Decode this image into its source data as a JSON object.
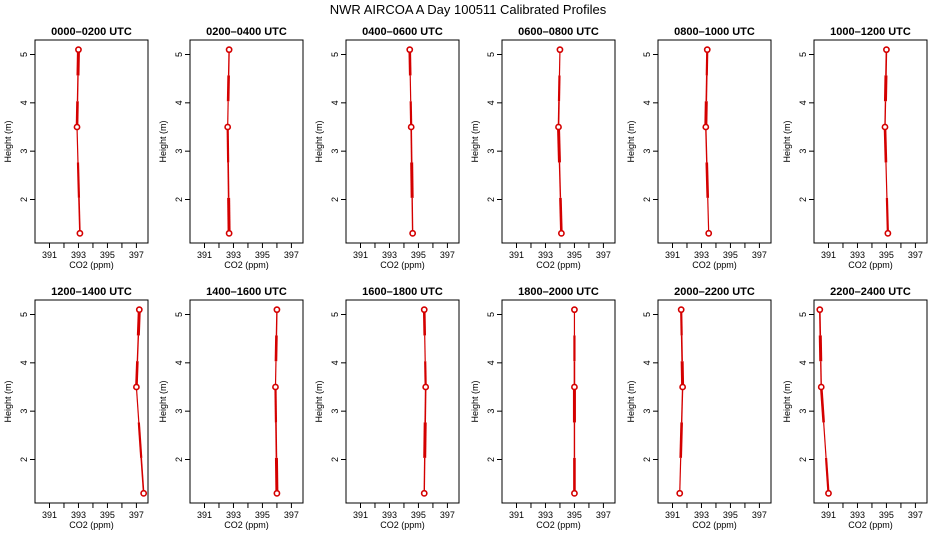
{
  "title": "NWR AIRCOA A  Day 100511  Calibrated Profiles",
  "colors": {
    "profile": "#d40000",
    "axis": "#000000",
    "background": "#ffffff"
  },
  "chart_data": {
    "type": "line",
    "orientation": "profile (x = CO2, y = height)",
    "xlabel": "CO2 (ppm)",
    "ylabel": "Height (m)",
    "xlim": [
      390,
      397.8
    ],
    "ylim": [
      1.1,
      5.3
    ],
    "xticks": [
      391,
      392,
      393,
      394,
      395,
      396,
      397
    ],
    "xtick_labels": [
      "391",
      "",
      "393",
      "",
      "395",
      "",
      "397"
    ],
    "yticks": [
      2,
      3,
      4,
      5
    ],
    "panels": [
      {
        "title": "0000–0200 UTC",
        "points": [
          [
            393.0,
            5.1
          ],
          [
            392.9,
            3.5
          ],
          [
            393.1,
            1.3
          ]
        ]
      },
      {
        "title": "0200–0400 UTC",
        "points": [
          [
            392.7,
            5.1
          ],
          [
            392.6,
            3.5
          ],
          [
            392.7,
            1.3
          ]
        ]
      },
      {
        "title": "0400–0600 UTC",
        "points": [
          [
            394.4,
            5.1
          ],
          [
            394.5,
            3.5
          ],
          [
            394.6,
            1.3
          ]
        ]
      },
      {
        "title": "0600–0800 UTC",
        "points": [
          [
            394.0,
            5.1
          ],
          [
            393.9,
            3.5
          ],
          [
            394.1,
            1.3
          ]
        ]
      },
      {
        "title": "0800–1000 UTC",
        "points": [
          [
            393.4,
            5.1
          ],
          [
            393.3,
            3.5
          ],
          [
            393.5,
            1.3
          ]
        ]
      },
      {
        "title": "1000–1200 UTC",
        "points": [
          [
            395.0,
            5.1
          ],
          [
            394.9,
            3.5
          ],
          [
            395.1,
            1.3
          ]
        ]
      },
      {
        "title": "1200–1400 UTC",
        "points": [
          [
            397.2,
            5.1
          ],
          [
            397.0,
            3.5
          ],
          [
            397.5,
            1.3
          ]
        ]
      },
      {
        "title": "1400–1600 UTC",
        "points": [
          [
            396.0,
            5.1
          ],
          [
            395.9,
            3.5
          ],
          [
            396.0,
            1.3
          ]
        ]
      },
      {
        "title": "1600–1800 UTC",
        "points": [
          [
            395.4,
            5.1
          ],
          [
            395.5,
            3.5
          ],
          [
            395.4,
            1.3
          ]
        ]
      },
      {
        "title": "1800–2000 UTC",
        "points": [
          [
            395.0,
            5.1
          ],
          [
            395.0,
            3.5
          ],
          [
            395.0,
            1.3
          ]
        ]
      },
      {
        "title": "2000–2200 UTC",
        "points": [
          [
            391.6,
            5.1
          ],
          [
            391.7,
            3.5
          ],
          [
            391.5,
            1.3
          ]
        ]
      },
      {
        "title": "2200–2400 UTC",
        "points": [
          [
            390.4,
            5.1
          ],
          [
            390.5,
            3.5
          ],
          [
            391.0,
            1.3
          ]
        ]
      }
    ]
  }
}
